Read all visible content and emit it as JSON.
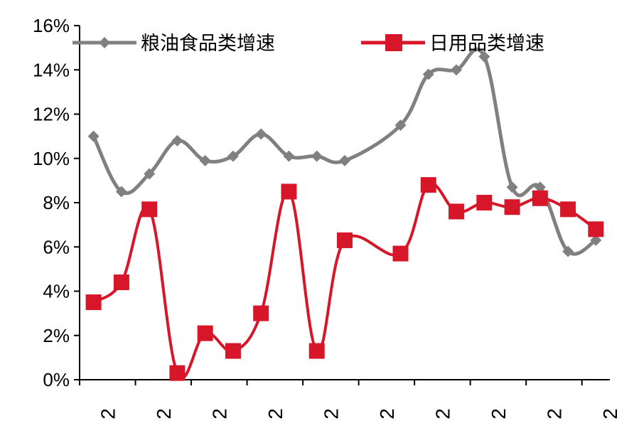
{
  "chart_data": {
    "type": "line",
    "title": "",
    "xlabel": "",
    "ylabel": "",
    "ylim": [
      0,
      16
    ],
    "yticks": [
      "0%",
      "2%",
      "4%",
      "6%",
      "8%",
      "10%",
      "12%",
      "14%",
      "16%"
    ],
    "ytick_values": [
      0,
      2,
      4,
      6,
      8,
      10,
      12,
      14,
      16
    ],
    "x": [
      1,
      2,
      3,
      4,
      5,
      6,
      7,
      8,
      9,
      10,
      11,
      12,
      13,
      14,
      15,
      16,
      17,
      18,
      19
    ],
    "xlim": [
      0.5,
      19.5
    ],
    "xticks": [
      "2",
      "2",
      "2",
      "2",
      "2",
      "2",
      "2",
      "2",
      "2",
      "2"
    ],
    "grid": false,
    "legend_position": "top",
    "series": [
      {
        "name": "粮油食品类增速",
        "color": "#808080",
        "marker": "diamond",
        "values": [
          11.0,
          8.5,
          9.3,
          10.8,
          9.9,
          10.1,
          11.1,
          10.1,
          10.1,
          9.9,
          null,
          11.5,
          13.8,
          14.0,
          14.6,
          8.7,
          8.7,
          5.8,
          6.3
        ]
      },
      {
        "name": "日用品类增速",
        "color": "#d7162a",
        "marker": "square",
        "values": [
          3.5,
          4.4,
          7.7,
          0.3,
          2.1,
          1.3,
          3.0,
          8.5,
          1.3,
          6.3,
          null,
          5.7,
          8.8,
          7.6,
          8.0,
          7.8,
          8.2,
          7.7,
          6.8
        ]
      }
    ]
  }
}
